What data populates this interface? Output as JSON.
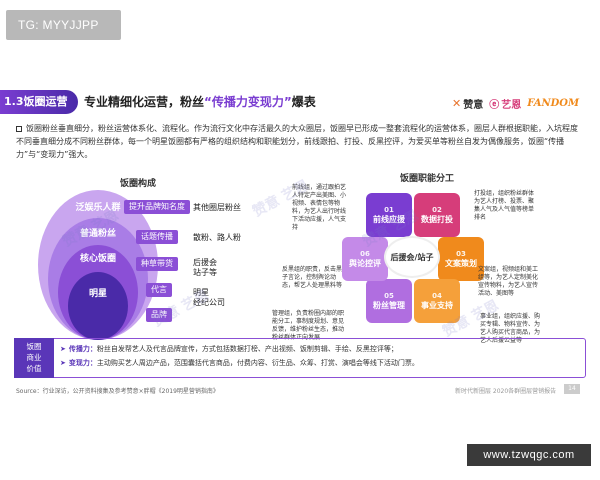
{
  "tg_badge": "TG: MYYJJPP",
  "slide": {
    "section": "1.3饭圈运营",
    "title_a": "专业精细化运营，粉丝",
    "title_q": "“传播力变现力”",
    "title_b": "爆表",
    "logos": {
      "zanyi": "赞意",
      "yien": "艺恩",
      "yien_sub": "endata",
      "fandom": "FANDOM"
    },
    "intro": "饭圈粉丝垂直细分，粉丝运营体系化、流程化。作为流行文化中存活最久的大众圈层，饭圈早已形成一整套流程化的运营体系，圈层人群根据职能，入坑程度不同垂直细分成不同粉丝群体，每一个明星饭圈都有严格的组织结构和职能划分，前线跟拍、打投、反黑控评，为爱买单等粉丝自发为偶像服务，饭圈“传播力”与“变现力”强大。",
    "left": {
      "title": "饭圈构成",
      "rings": [
        "泛娱乐人群",
        "普通粉丝",
        "核心饭圈",
        "明星"
      ],
      "steps": [
        "提升品牌知名度",
        "话题传播",
        "种草带货",
        "代言",
        "品牌"
      ],
      "side": [
        "其他圈层粉丝",
        "散粉、路人粉",
        "后援会\n站子等",
        "明星\n经纪公司"
      ]
    },
    "right": {
      "title": "饭圈职能分工",
      "hub": "后援会/站子",
      "petals": [
        {
          "num": "01",
          "label": "前线应援"
        },
        {
          "num": "02",
          "label": "数据打投"
        },
        {
          "num": "03",
          "label": "文案策划"
        },
        {
          "num": "04",
          "label": "事业支持"
        },
        {
          "num": "05",
          "label": "粉丝管理"
        },
        {
          "num": "06",
          "label": "舆论控评"
        }
      ],
      "descs": [
        "前线组，通过跟拍艺人特定产出美图、小视频、表情包等物料，为艺人出行时线下活动应援，人气支持",
        "打投组，组织粉丝群体为艺人打榜、投票、聚集人气及人气值等榜单排名",
        "文案组，视频组和美工组等，为艺人定制美化宣传物料，为艺人宣传活动、美图等",
        "事业组，组织应援、购买专辑、物料宣传、为艺人购买代言商品，为艺人后援公益等",
        "管理组，负责粉圈内部的职能分工，事制度规划、意见反馈，维护粉丝生态，推动粉丝群体正向发展",
        "反黑组的职责，反击黑子言论，控制舆论动态，帮艺人处理黑料等"
      ]
    },
    "bottom": {
      "label": "饭圈\n商业\n价值",
      "l1_key": "传播力：",
      "l1_text": "粉丝自发帮艺人及代言品牌宣传，方式包括数据打榜、产出视频、饭制剪辑、手绘、反黑控评等；",
      "l2_key": "变现力：",
      "l2_text": "主动购买艺人周边产品，范围囊括代言商品，付费内容、衍生品、众筹、打赏、演唱会等线下活动门票。"
    },
    "source": "Source：行业深访，公开资料搜集及参考赞意×胖帽《2019明星营销指南》",
    "footer": "新时代新圈层 2020各群圈层营销报告",
    "page": "14"
  },
  "watermark": "赞意 艺恩",
  "url_badge": "www.tzwqgc.com",
  "colors": {
    "purple": "#7a3dd1",
    "deep": "#5a36b8",
    "orange": "#f08a1c",
    "pink": "#d63d7a"
  }
}
